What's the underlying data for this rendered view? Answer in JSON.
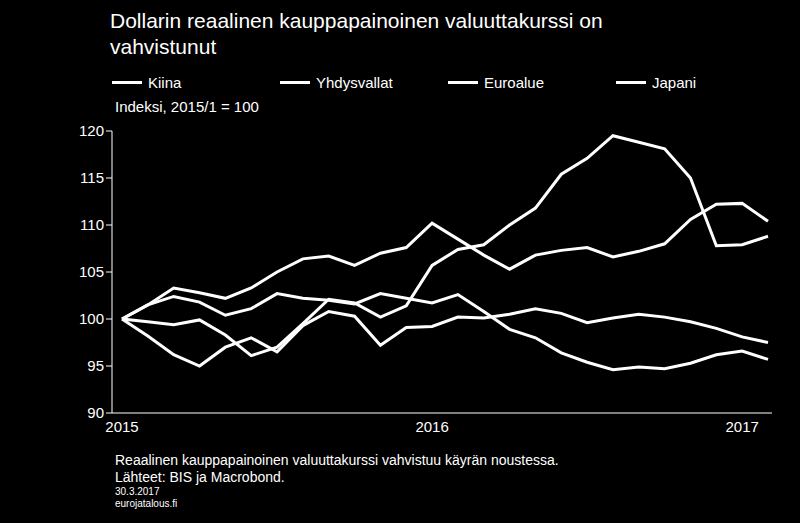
{
  "chart_data": {
    "type": "line",
    "title": "Dollarin reaalinen kauppapainoinen valuuttakurssi on vahvistunut",
    "y_label": "Indeksi, 2015/1 = 100",
    "annotations": [
      "Reaalinen kauppapainoinen valuuttakurssi vahvistuu käyrän noustessa.",
      "Lähteet: BIS ja Macrobond.",
      "30.3.2017",
      "eurojatalous.fi"
    ],
    "categories": [
      "2015",
      null,
      null,
      null,
      null,
      null,
      null,
      null,
      null,
      null,
      null,
      null,
      "2016",
      null,
      null,
      null,
      null,
      null,
      null,
      null,
      null,
      null,
      null,
      null,
      "2017",
      null
    ],
    "series": [
      {
        "name": "Kiina",
        "color": "#ffffff",
        "values": [
          100,
          101.5,
          102.4,
          101.8,
          100.4,
          101.1,
          102.7,
          102.2,
          102.0,
          101.6,
          102.7,
          102.2,
          101.7,
          102.6,
          100.8,
          98.9,
          98.0,
          96.4,
          95.4,
          94.6,
          94.9,
          94.7,
          95.3,
          96.2,
          96.6,
          95.7
        ]
      },
      {
        "name": "Yhdysvallat",
        "color": "#ffffff",
        "values": [
          100,
          101.5,
          103.3,
          102.8,
          102.2,
          103.3,
          105.0,
          106.4,
          106.7,
          105.7,
          107.0,
          107.6,
          110.2,
          108.5,
          106.8,
          105.3,
          106.8,
          107.3,
          107.6,
          106.6,
          107.2,
          108.0,
          110.6,
          112.2,
          112.3,
          110.4
        ]
      },
      {
        "name": "Euroalue",
        "color": "#ffffff",
        "values": [
          100,
          98.2,
          96.2,
          95.0,
          97.0,
          98.0,
          96.5,
          99.3,
          100.8,
          100.3,
          97.2,
          99.1,
          99.2,
          100.2,
          100.1,
          100.5,
          101.1,
          100.6,
          99.6,
          100.1,
          100.5,
          100.2,
          99.7,
          99.0,
          98.1,
          97.5
        ]
      },
      {
        "name": "Japani",
        "color": "#ffffff",
        "values": [
          100,
          99.7,
          99.4,
          99.9,
          98.3,
          96.1,
          97.0,
          99.5,
          102.1,
          101.7,
          100.2,
          101.4,
          105.7,
          107.4,
          107.9,
          110.0,
          111.8,
          115.4,
          117.1,
          119.5,
          118.8,
          118.1,
          115.0,
          107.8,
          107.9,
          108.8
        ]
      }
    ],
    "ylim": [
      90,
      120
    ],
    "yticks": [
      90,
      95,
      100,
      105,
      110,
      115,
      120
    ],
    "grid": false,
    "legend": "top"
  }
}
